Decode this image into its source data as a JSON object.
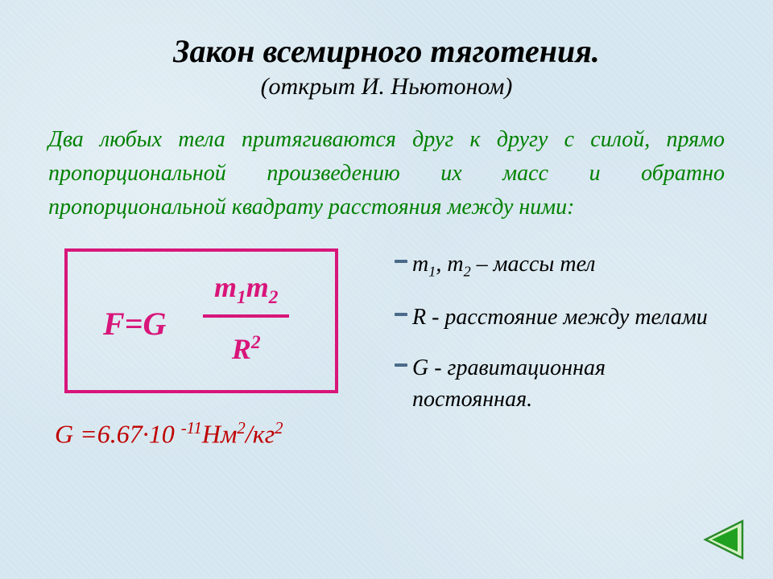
{
  "title": "Закон всемирного тяготения.",
  "subtitle": "(открыт И. Ньютоном)",
  "body_text": "Два любых тела притягиваются друг к другу с силой, прямо пропорциональной произведению их масс и обратно пропорциональной квадрату расстояния между ними:",
  "formula": {
    "lhs": "F=G",
    "numerator_html": "m<sub>1</sub>m<sub>2</sub>",
    "denominator_html": "R<sup>2</sup>",
    "box_border_color": "#d8157a",
    "text_color": "#d8157a"
  },
  "constant_html": "G =6.67·10 <sup>-11</sup>Нм<sup>2</sup>/кг<sup>2</sup>",
  "constant_color": "#c00000",
  "legend": [
    {
      "html": "m<sub>1</sub>, m<sub>2</sub> – массы тел"
    },
    {
      "html": " R - расстояние между телами"
    },
    {
      "html": " G - гравитационная постоянная."
    }
  ],
  "colors": {
    "background": "#d8e8f0",
    "body_text": "#008000",
    "bullet_dash": "#4a6a8a",
    "nav_border": "#2a8a2a",
    "nav_fill": "#d4f0c4",
    "nav_arrow": "#20a020"
  },
  "nav": {
    "direction": "back"
  }
}
